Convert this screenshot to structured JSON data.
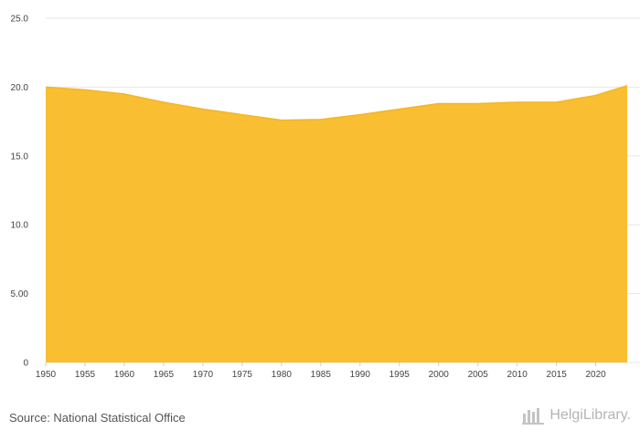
{
  "chart_data": {
    "type": "area",
    "title": "",
    "xlabel": "",
    "ylabel": "",
    "x": [
      1950,
      1955,
      1960,
      1965,
      1970,
      1975,
      1980,
      1985,
      1990,
      1995,
      2000,
      2005,
      2010,
      2015,
      2020,
      2024
    ],
    "values": [
      20.0,
      19.8,
      19.5,
      18.9,
      18.4,
      18.0,
      17.6,
      17.65,
      18.0,
      18.4,
      18.8,
      18.8,
      18.9,
      18.9,
      19.4,
      20.1
    ],
    "ylim": [
      0,
      25
    ],
    "xlim": [
      1950,
      2024
    ],
    "y_ticks": [
      0,
      5,
      10,
      15,
      20,
      25
    ],
    "y_tick_labels": [
      "0",
      "5.00",
      "10.0",
      "15.0",
      "20.0",
      "25.0"
    ],
    "x_ticks": [
      1950,
      1955,
      1960,
      1965,
      1970,
      1975,
      1980,
      1985,
      1990,
      1995,
      2000,
      2005,
      2010,
      2015,
      2020
    ],
    "x_tick_labels": [
      "1950",
      "1955",
      "1960",
      "1965",
      "1970",
      "1975",
      "1980",
      "1985",
      "1990",
      "1995",
      "2000",
      "2005",
      "2010",
      "2015",
      "2020"
    ],
    "grid": true,
    "fill_color": "#F9BE31",
    "line_color": "#F5B526"
  },
  "footer": {
    "source": "Source: National Statistical Office",
    "brand": "HelgiLibrary."
  }
}
